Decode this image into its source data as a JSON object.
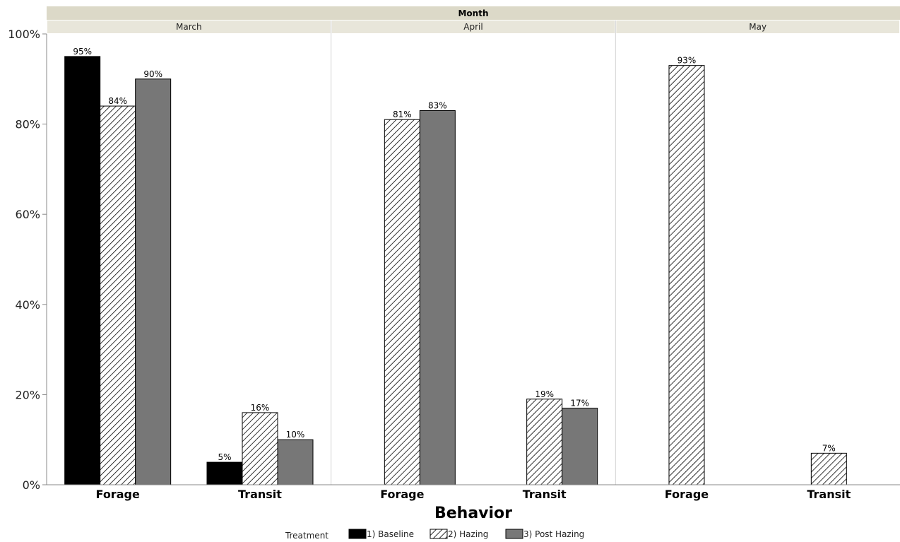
{
  "chart_data": {
    "type": "bar",
    "header_label": "Month",
    "xlabel": "Behavior",
    "ylabel": "",
    "ylim": [
      0,
      100
    ],
    "y_ticks": [
      "0%",
      "20%",
      "40%",
      "60%",
      "80%",
      "100%"
    ],
    "y_tick_values": [
      0,
      20,
      40,
      60,
      80,
      100
    ],
    "panels": [
      {
        "name": "March",
        "categories": [
          "Forage",
          "Transit"
        ]
      },
      {
        "name": "April",
        "categories": [
          "Forage",
          "Transit"
        ]
      },
      {
        "name": "May",
        "categories": [
          "Forage",
          "Transit"
        ]
      }
    ],
    "legend": {
      "title": "Treatment",
      "placement": "bottom",
      "items": [
        "1) Baseline",
        "2) Hazing",
        "3) Post Hazing"
      ]
    },
    "series": [
      {
        "name": "1) Baseline",
        "fill": "solid",
        "color": "#000000",
        "values": [
          [
            95,
            5
          ],
          [
            null,
            null
          ],
          [
            null,
            null
          ]
        ],
        "labels": [
          [
            "95%",
            "5%"
          ],
          [
            null,
            null
          ],
          [
            null,
            null
          ]
        ]
      },
      {
        "name": "2) Hazing",
        "fill": "hatch",
        "color": "#ffffff",
        "values": [
          [
            84,
            16
          ],
          [
            81,
            19
          ],
          [
            93,
            7
          ]
        ],
        "labels": [
          [
            "84%",
            "16%"
          ],
          [
            "81%",
            "19%"
          ],
          [
            "93%",
            "7%"
          ]
        ]
      },
      {
        "name": "3) Post Hazing",
        "fill": "solid",
        "color": "#777777",
        "values": [
          [
            90,
            10
          ],
          [
            83,
            17
          ],
          [
            null,
            null
          ]
        ],
        "labels": [
          [
            "90%",
            "10%"
          ],
          [
            "83%",
            "17%"
          ],
          [
            null,
            null
          ]
        ]
      }
    ],
    "colors": {
      "header_bg": "#dcd9c8",
      "panel_header_bg": "#e8e6da",
      "axis": "#888888",
      "divider": "#d4d4d4"
    }
  }
}
